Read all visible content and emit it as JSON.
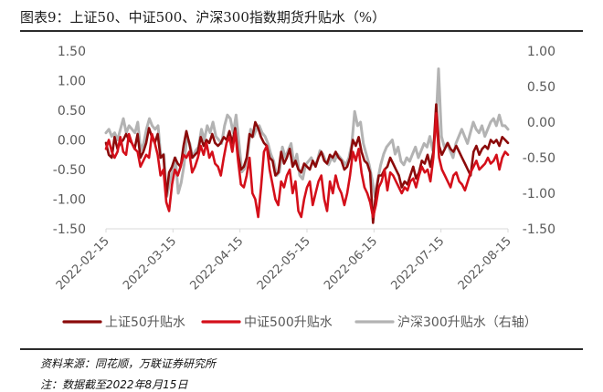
{
  "title": "图表9：上证50、中证500、沪深300指数期货升贴水（%）",
  "source": "资料来源：同花顺，万联证券研究所",
  "note": "注：数据截至2022年8月15日",
  "colors": {
    "sz50": "#8b0a0a",
    "zz500": "#d40f1a",
    "hs300": "#b3b3b3",
    "axis": "#d9d9d9",
    "text": "#595959"
  },
  "chart_data": {
    "type": "line",
    "x_ticks": [
      "2022-02-15",
      "2022-03-15",
      "2022-04-15",
      "2022-05-15",
      "2022-06-15",
      "2022-07-15",
      "2022-08-15"
    ],
    "y_left": {
      "ticks": [
        "1.50",
        "1.00",
        "0.50",
        "0.00",
        "-0.50",
        "-1.00",
        "-1.50"
      ],
      "lim": [
        -1.5,
        1.5
      ]
    },
    "y_right": {
      "ticks": [
        "1.00",
        "0.50",
        "0.00",
        "-0.50",
        "-1.00",
        "-1.50"
      ],
      "lim": [
        -1.5,
        1.0
      ]
    },
    "legend_position": "bottom",
    "series": [
      {
        "name": "上证50升贴水",
        "key": "sz50",
        "axis": "left",
        "values": [
          -0.05,
          -0.25,
          -0.3,
          0.05,
          -0.15,
          -0.05,
          0.0,
          0.1,
          0.0,
          -0.05,
          -0.15,
          0.1,
          -0.3,
          -0.2,
          -0.05,
          0.2,
          0.05,
          -0.05,
          0.1,
          -0.3,
          -0.25,
          -0.95,
          -0.55,
          -0.45,
          -0.3,
          -0.4,
          -0.45,
          -0.1,
          0.15,
          -0.05,
          -0.3,
          -0.25,
          -0.2,
          0.05,
          -0.1,
          0.0,
          -0.05,
          0.1,
          -0.05,
          -0.1,
          -0.05,
          0.05,
          0.0,
          0.15,
          -0.05,
          0.2,
          -0.25,
          -0.5,
          -0.45,
          -0.3,
          0.1,
          0.05,
          0.3,
          0.2,
          0.05,
          -0.05,
          -0.1,
          -0.3,
          -0.35,
          -0.6,
          -0.55,
          -0.2,
          -0.4,
          -0.3,
          -0.15,
          -0.45,
          -0.35,
          -0.5,
          -0.55,
          -0.4,
          -0.45,
          -0.5,
          -0.35,
          -0.45,
          -0.3,
          -0.2,
          -0.35,
          -0.4,
          -0.25,
          -0.3,
          -0.2,
          -0.3,
          -0.35,
          -0.5,
          -0.45,
          -0.3,
          0.0,
          -0.1,
          0.05,
          -0.2,
          -0.35,
          -0.4,
          -0.55,
          -1.4,
          -0.9,
          -0.6,
          -0.6,
          -0.5,
          -0.45,
          -0.3,
          -0.4,
          -0.5,
          -0.6,
          -0.8,
          -0.7,
          -0.75,
          -0.6,
          -0.45,
          -0.65,
          -0.55,
          -0.35,
          -0.4,
          -0.25,
          -0.45,
          -0.2,
          0.6,
          -0.1,
          -0.25,
          -0.15,
          -0.05,
          -0.15,
          -0.2,
          -0.1,
          -0.2,
          -0.3,
          -0.4,
          -0.5,
          -0.6,
          -0.2,
          -0.1,
          -0.25,
          -0.15,
          -0.1,
          -0.15,
          0.0,
          -0.05,
          0.0,
          -0.1,
          0.05,
          0.0,
          -0.05
        ]
      },
      {
        "name": "中证500升贴水",
        "key": "zz500",
        "axis": "left",
        "values": [
          -0.15,
          0.0,
          -0.2,
          -0.3,
          -0.2,
          0.05,
          -0.2,
          -0.25,
          0.1,
          -0.05,
          -0.15,
          -0.2,
          -0.45,
          -0.35,
          -0.25,
          -0.3,
          0.1,
          -0.05,
          -0.25,
          -0.6,
          -0.5,
          -1.05,
          -1.2,
          -0.75,
          -0.5,
          -0.6,
          -0.45,
          -0.25,
          -0.3,
          -0.2,
          -0.55,
          -0.45,
          -0.3,
          -0.1,
          -0.25,
          -0.05,
          -0.3,
          -0.2,
          -0.4,
          -0.45,
          -0.6,
          -0.3,
          -0.05,
          0.05,
          -0.2,
          0.15,
          -0.35,
          -0.75,
          -0.8,
          -0.6,
          -0.3,
          -0.9,
          -1.0,
          -1.3,
          -0.8,
          -0.2,
          -0.1,
          -0.5,
          -0.75,
          -1.0,
          -1.1,
          -0.7,
          -0.8,
          -0.6,
          -0.5,
          -0.9,
          -0.7,
          -1.2,
          -1.3,
          -1.0,
          -0.8,
          -0.7,
          -1.1,
          -0.9,
          -0.7,
          -0.6,
          -1.0,
          -1.2,
          -0.7,
          -0.9,
          -0.6,
          -0.8,
          -0.9,
          -1.1,
          -0.9,
          -0.6,
          -0.2,
          -0.35,
          -0.15,
          -0.55,
          -0.8,
          -0.9,
          -1.05,
          -1.3,
          -1.1,
          -0.8,
          -0.7,
          -0.5,
          -0.85,
          -0.55,
          -0.6,
          -0.7,
          -0.8,
          -0.9,
          -0.8,
          -0.85,
          -0.7,
          -0.65,
          -0.8,
          -0.6,
          -0.45,
          -0.55,
          -0.5,
          -0.7,
          -0.3,
          0.45,
          -0.3,
          -0.5,
          -0.6,
          -0.7,
          -0.8,
          -0.6,
          -0.55,
          -0.7,
          -0.75,
          -0.85,
          -0.7,
          -0.55,
          -0.45,
          -0.35,
          -0.5,
          -0.45,
          -0.4,
          -0.3,
          -0.4,
          -0.35,
          -0.25,
          -0.5,
          -0.3,
          -0.2,
          -0.25
        ]
      },
      {
        "name": "沪深300升贴水（右轴）",
        "key": "hs300",
        "axis": "right",
        "values": [
          -0.15,
          -0.1,
          -0.2,
          -0.15,
          -0.25,
          -0.1,
          0.05,
          -0.15,
          -0.05,
          -0.1,
          -0.15,
          0.0,
          -0.4,
          -0.3,
          -0.1,
          0.05,
          -0.05,
          -0.1,
          -0.05,
          -0.5,
          -0.45,
          -1.05,
          -0.85,
          -0.7,
          -0.5,
          -1.0,
          -0.85,
          -0.6,
          -0.2,
          -0.3,
          -0.5,
          -0.4,
          -0.35,
          -0.1,
          -0.25,
          -0.05,
          -0.15,
          0.0,
          -0.2,
          -0.25,
          -0.3,
          -0.05,
          0.1,
          0.05,
          -0.15,
          0.1,
          -0.3,
          -0.7,
          -0.65,
          -0.45,
          -0.1,
          -0.2,
          -0.1,
          -0.05,
          -0.15,
          -0.2,
          -0.3,
          -0.45,
          -0.55,
          -0.75,
          -0.7,
          -0.35,
          -0.5,
          -0.4,
          -0.3,
          -0.6,
          -0.45,
          -0.75,
          -0.8,
          -0.6,
          -0.55,
          -0.5,
          -0.6,
          -0.55,
          -0.4,
          -0.45,
          -0.55,
          -0.6,
          -0.5,
          -0.55,
          -0.45,
          -0.5,
          -0.55,
          -0.6,
          -0.5,
          -0.3,
          0.15,
          -0.05,
          0.0,
          -0.3,
          -0.45,
          -0.6,
          -0.8,
          -1.05,
          -0.8,
          -0.6,
          -0.45,
          -0.35,
          -0.3,
          -0.25,
          -0.45,
          -0.35,
          -0.55,
          -0.6,
          -0.5,
          -0.55,
          -0.45,
          -0.35,
          -0.5,
          -0.4,
          -0.3,
          -0.35,
          -0.2,
          -0.4,
          -0.1,
          0.75,
          -0.2,
          -0.35,
          -0.3,
          -0.4,
          -0.5,
          -0.3,
          -0.2,
          -0.1,
          -0.2,
          -0.3,
          -0.15,
          0.0,
          -0.1,
          -0.15,
          -0.05,
          -0.2,
          -0.1,
          0.0,
          0.05,
          -0.05,
          0.1,
          -0.05,
          -0.05,
          -0.1
        ]
      }
    ]
  }
}
